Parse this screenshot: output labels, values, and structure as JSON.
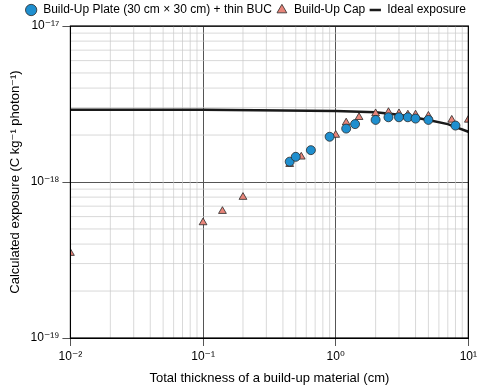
{
  "chart_data": {
    "type": "scatter",
    "x_label": "Total thickness of a build-up material (cm)",
    "y_label": "Calculated exposure (C kg⁻¹ photon⁻¹)",
    "log": true,
    "grid": true,
    "legend": "top",
    "xlim": [
      0.01,
      10
    ],
    "xticks": [
      {
        "value": 0.01,
        "label": "10⁻²"
      },
      {
        "value": 0.1,
        "label": "10⁻¹"
      },
      {
        "value": 1,
        "label": "10⁰"
      },
      {
        "value": 10,
        "label": "10¹"
      }
    ],
    "ylim": [
      1e-19,
      1e-17
    ],
    "yticks": [
      {
        "value": 1e-19,
        "label": "10⁻¹⁹"
      },
      {
        "value": 1e-18,
        "label": "10⁻¹⁸"
      },
      {
        "value": 1e-17,
        "label": "10⁻¹⁷"
      }
    ],
    "series": [
      {
        "name": "Ideal exposure",
        "type": "line",
        "color": "#1a1a1a",
        "line_style": "solid",
        "x": [
          0.01,
          0.1,
          1,
          2,
          3,
          5,
          7,
          10
        ],
        "values": [
          2.9e-18,
          2.9e-18,
          2.85e-18,
          2.8e-18,
          2.7e-18,
          2.5e-18,
          2.35e-18,
          2.1e-18
        ]
      },
      {
        "name": "Build-Up Cap",
        "type": "scatter",
        "color": "#e8857a",
        "marker": "triangle",
        "x": [
          0.01,
          0.1,
          0.14,
          0.2,
          0.45,
          0.55,
          1.0,
          1.2,
          1.5,
          2,
          2.5,
          3,
          3.5,
          4,
          5,
          7.5,
          10
        ],
        "values": [
          3.5e-19,
          5.5e-19,
          6.5e-19,
          8e-19,
          1.3e-18,
          1.45e-18,
          2e-18,
          2.4e-18,
          2.6e-18,
          2.75e-18,
          2.8e-18,
          2.75e-18,
          2.7e-18,
          2.7e-18,
          2.65e-18,
          2.5e-18,
          2.5e-18
        ]
      },
      {
        "name": "Build-Up Plate (30 cm × 30 cm) + thin BUC",
        "type": "scatter",
        "color": "#1f8fcf",
        "marker": "circle",
        "x": [
          0.45,
          0.5,
          0.65,
          0.9,
          1.2,
          1.4,
          2,
          2.5,
          3,
          3.5,
          4,
          5,
          8
        ],
        "values": [
          1.35e-18,
          1.45e-18,
          1.6e-18,
          1.95e-18,
          2.2e-18,
          2.35e-18,
          2.5e-18,
          2.6e-18,
          2.6e-18,
          2.6e-18,
          2.55e-18,
          2.5e-18,
          2.3e-18
        ]
      }
    ]
  }
}
